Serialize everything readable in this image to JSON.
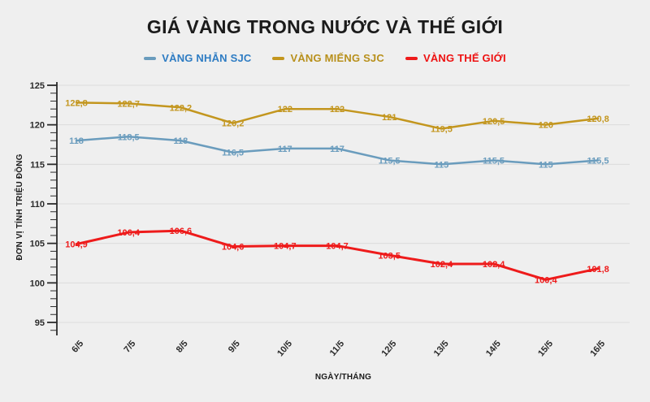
{
  "title": "GIÁ VÀNG TRONG NƯỚC VÀ THẾ GIỚI",
  "colors": {
    "background": "#efefef",
    "title_text": "#1b1b1b",
    "grid_line": "#dcdcdc",
    "axis_line": "#2b2b2b"
  },
  "chart_data": {
    "type": "line",
    "title": "GIÁ VÀNG TRONG NƯỚC VÀ THẾ GIỚI",
    "xlabel": "NGÀY/THÁNG",
    "ylabel": "ĐƠN VỊ TÍNH TRIỆU ĐỒNG",
    "categories": [
      "6/5",
      "7/5",
      "8/5",
      "9/5",
      "10/5",
      "11/5",
      "12/5",
      "13/5",
      "14/5",
      "15/5",
      "16/5"
    ],
    "series": [
      {
        "name": "VÀNG NHẪN SJC",
        "color": "#6a9cbd",
        "legend_text_color": "#2e7cc3",
        "line_width": 2.5,
        "values": [
          118,
          118.5,
          118,
          116.5,
          117,
          117,
          115.5,
          115,
          115.5,
          115,
          115.5
        ]
      },
      {
        "name": "VÀNG MIẾNG SJC",
        "color": "#c3961e",
        "legend_text_color": "#b8901c",
        "line_width": 2.5,
        "values": [
          122.8,
          122.7,
          122.2,
          120.2,
          122,
          122,
          121,
          119.5,
          120.5,
          120,
          120.8
        ]
      },
      {
        "name": "VÀNG THẾ GIỚI",
        "color": "#ee1b1b",
        "legend_text_color": "#ee1111",
        "line_width": 3,
        "values": [
          104.9,
          106.4,
          106.6,
          104.6,
          104.7,
          104.7,
          103.5,
          102.4,
          102.4,
          100.4,
          101.8
        ]
      }
    ],
    "ylim": [
      95,
      125
    ],
    "ytick_step": 5,
    "ytick_labels": [
      "95",
      "100",
      "105",
      "110",
      "115",
      "120",
      "125"
    ],
    "grid": true,
    "legend_position": "top",
    "decimal_separator": ",",
    "data_labels": true
  }
}
